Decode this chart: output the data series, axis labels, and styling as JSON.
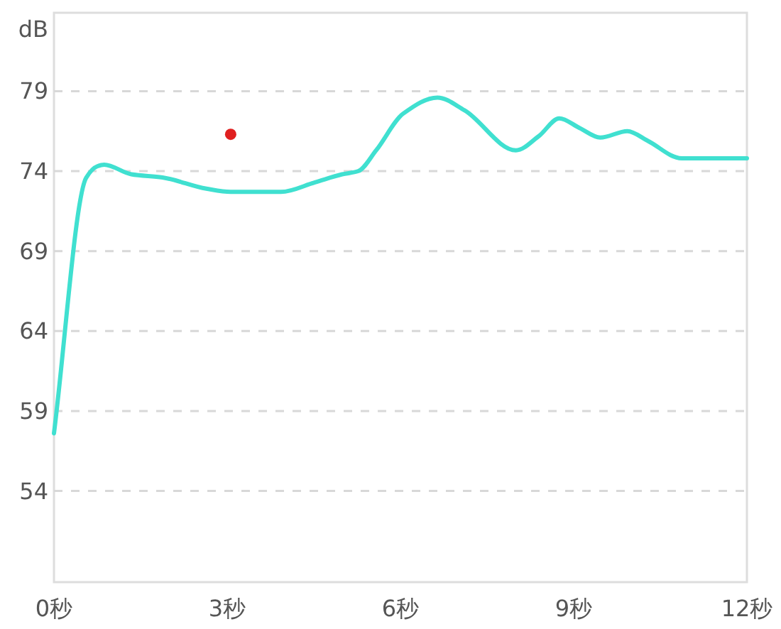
{
  "chart_data": {
    "type": "line",
    "ylabel": "dB",
    "xlim": [
      0,
      12
    ],
    "ylim": [
      48.3,
      83.9
    ],
    "xticks": [
      {
        "value": 0,
        "label": "0秒"
      },
      {
        "value": 3,
        "label": "3秒"
      },
      {
        "value": 6,
        "label": "6秒"
      },
      {
        "value": 9,
        "label": "9秒"
      },
      {
        "value": 12,
        "label": "12秒"
      }
    ],
    "yticks": [
      54,
      59,
      64,
      69,
      74,
      79
    ],
    "grid": "y",
    "series": [
      {
        "color": "#40e0d0",
        "marker": "none",
        "x": [
          0,
          0.56,
          0.75,
          0.87,
          1.34,
          1.88,
          2.64,
          3.06,
          3.93,
          4.52,
          4.99,
          5.27,
          5.58,
          6.05,
          6.64,
          7.11,
          8.0,
          8.4,
          8.75,
          9.1,
          9.46,
          9.93,
          10.28,
          10.87,
          12
        ],
        "values": [
          57.6,
          73.6,
          74.3,
          74.4,
          73.8,
          73.6,
          72.9,
          72.7,
          72.7,
          73.3,
          73.8,
          74.0,
          75.3,
          77.6,
          78.6,
          77.8,
          75.3,
          76.2,
          77.3,
          76.7,
          76.1,
          76.5,
          75.9,
          74.8,
          74.8
        ]
      },
      {
        "type": "scatter",
        "color": "#e02020",
        "marker": "circle",
        "x": [
          3.06
        ],
        "values": [
          76.3
        ]
      }
    ]
  }
}
